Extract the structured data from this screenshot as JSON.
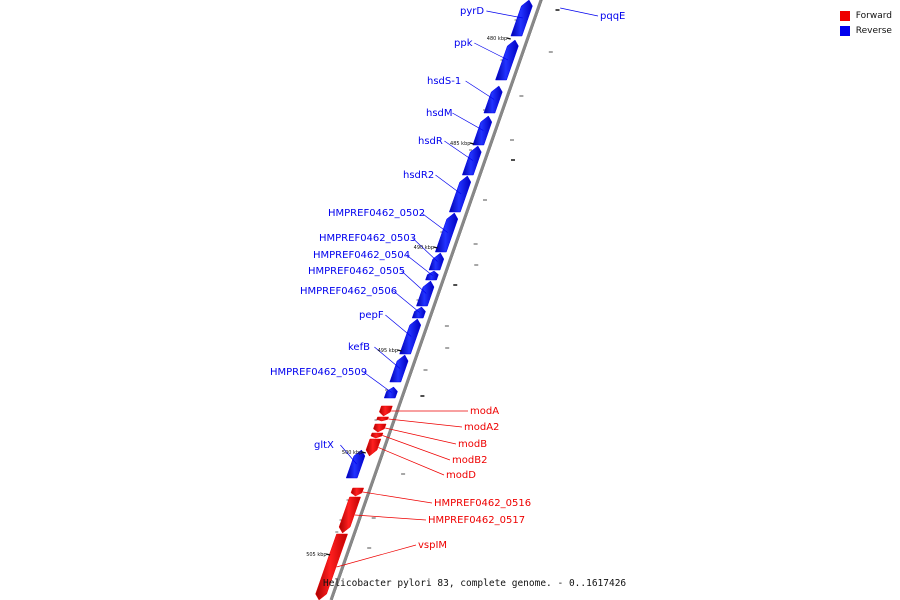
{
  "title": "Helicobacter pylori 83, complete genome. - 0..1617426",
  "legend": [
    {
      "label": "Forward",
      "color": "#ee0000"
    },
    {
      "label": "Reverse",
      "color": "#0000ee"
    }
  ],
  "ticks": [
    "480 kbp",
    "485 kbp",
    "490 kbp",
    "495 kbp",
    "500 kbp",
    "505 kbp"
  ],
  "genes": [
    {
      "name": "pyrD",
      "strand": "reverse"
    },
    {
      "name": "pqqE",
      "strand": "reverse"
    },
    {
      "name": "ppk",
      "strand": "reverse"
    },
    {
      "name": "hsdS-1",
      "strand": "reverse"
    },
    {
      "name": "hsdM",
      "strand": "reverse"
    },
    {
      "name": "hsdR",
      "strand": "reverse"
    },
    {
      "name": "hsdR2",
      "strand": "reverse"
    },
    {
      "name": "HMPREF0462_0502",
      "strand": "reverse"
    },
    {
      "name": "HMPREF0462_0503",
      "strand": "reverse"
    },
    {
      "name": "HMPREF0462_0504",
      "strand": "reverse"
    },
    {
      "name": "HMPREF0462_0505",
      "strand": "reverse"
    },
    {
      "name": "HMPREF0462_0506",
      "strand": "reverse"
    },
    {
      "name": "pepF",
      "strand": "reverse"
    },
    {
      "name": "kefB",
      "strand": "reverse"
    },
    {
      "name": "HMPREF0462_0509",
      "strand": "reverse"
    },
    {
      "name": "modA",
      "strand": "forward"
    },
    {
      "name": "modA2",
      "strand": "forward"
    },
    {
      "name": "modB",
      "strand": "forward"
    },
    {
      "name": "gltX",
      "strand": "reverse"
    },
    {
      "name": "modB2",
      "strand": "forward"
    },
    {
      "name": "modD",
      "strand": "forward"
    },
    {
      "name": "HMPREF0462_0516",
      "strand": "forward"
    },
    {
      "name": "HMPREF0462_0517",
      "strand": "forward"
    },
    {
      "name": "vspIM",
      "strand": "forward"
    }
  ],
  "colors": {
    "forward": "#ee0000",
    "reverse": "#0000ee",
    "backbone": "#888888"
  }
}
